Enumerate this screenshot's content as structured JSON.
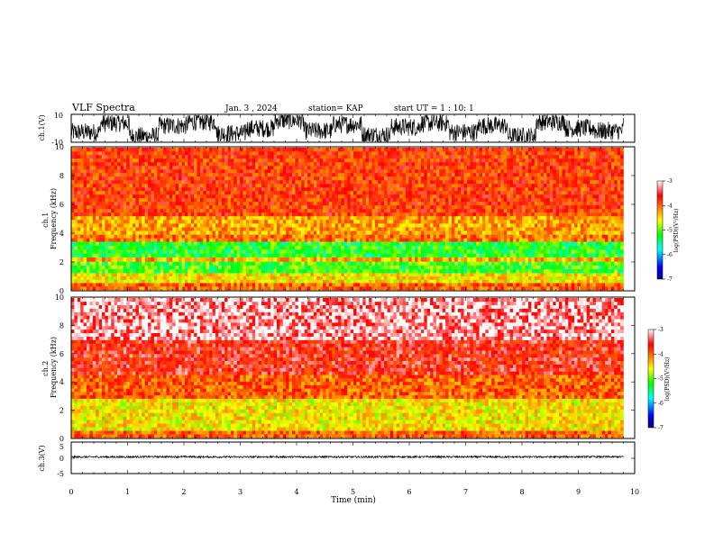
{
  "header": {
    "title": "VLF Spectra",
    "date": "Jan. 3 , 2024",
    "station": "station= KAP",
    "start": "start UT = 1 : 10: 1"
  },
  "colorbar": {
    "label": "log(PSD)(V²/Hz)",
    "ticks": [
      "-3",
      "-4",
      "-5",
      "-6",
      "-7"
    ],
    "colors": [
      "#000080",
      "#0000ff",
      "#00ffff",
      "#00ff00",
      "#ffff00",
      "#ff8000",
      "#ff0000",
      "#ffffff"
    ]
  },
  "chart_data": [
    {
      "type": "line",
      "title": "VLF Spectra",
      "ylabel": "ch.1(V)",
      "ylim": [
        -10,
        10
      ],
      "yticks": [
        "10",
        "-10"
      ],
      "xlim": [
        0,
        10
      ],
      "series": [
        {
          "values": [
            -3,
            4,
            -6,
            2,
            5,
            -4,
            0,
            6,
            -2,
            3,
            -5,
            1,
            4,
            -3,
            2,
            -6,
            5,
            0,
            -2,
            4
          ]
        }
      ]
    },
    {
      "type": "heatmap",
      "ylabel": "ch.1\nFrequency (kHz)",
      "ylim": [
        0,
        10
      ],
      "yticks": [
        "0",
        "2",
        "4",
        "6",
        "8",
        "10"
      ],
      "xlim": [
        0,
        10.0
      ],
      "data_end_min": 9.8,
      "bands": [
        {
          "from": 0.0,
          "to": 0.5,
          "level": -4.0
        },
        {
          "from": 0.5,
          "to": 1.2,
          "level": -4.6
        },
        {
          "from": 1.2,
          "to": 2.0,
          "level": -5.2
        },
        {
          "from": 2.0,
          "to": 2.3,
          "level": -4.3
        },
        {
          "from": 2.3,
          "to": 3.4,
          "level": -5.3
        },
        {
          "from": 3.4,
          "to": 3.9,
          "level": -4.1
        },
        {
          "from": 3.9,
          "to": 5.2,
          "level": -4.3
        },
        {
          "from": 5.2,
          "to": 10.0,
          "level": -3.8
        }
      ],
      "colorbar_label": "log(PSD)(V²/Hz)",
      "clim": [
        -7,
        -3
      ]
    },
    {
      "type": "heatmap",
      "ylabel": "ch.2\nFrequency (kHz)",
      "ylim": [
        0,
        10
      ],
      "yticks": [
        "0",
        "2",
        "4",
        "6",
        "8",
        "10"
      ],
      "xlim": [
        0,
        10.0
      ],
      "data_end_min": 9.8,
      "bands": [
        {
          "from": 0.0,
          "to": 0.5,
          "level": -4.0
        },
        {
          "from": 0.5,
          "to": 2.8,
          "level": -4.6
        },
        {
          "from": 2.8,
          "to": 4.5,
          "level": -4.0
        },
        {
          "from": 4.5,
          "to": 7.0,
          "level": -3.6
        },
        {
          "from": 7.0,
          "to": 10.0,
          "level": -3.2
        }
      ],
      "colorbar_label": "log(PSD)(V²/Hz)",
      "clim": [
        -7,
        -3
      ]
    },
    {
      "type": "line",
      "ylabel": "ch.3(V)",
      "ylim": [
        -5,
        5
      ],
      "yticks": [
        "5",
        "0",
        "-5"
      ],
      "xlim": [
        0,
        10
      ],
      "xlabel": "Time (min)",
      "xticks": [
        "0",
        "1",
        "2",
        "3",
        "4",
        "5",
        "6",
        "7",
        "8",
        "9",
        "10"
      ],
      "series": [
        {
          "values": [
            0.3,
            0.35,
            0.3,
            0.32,
            0.3,
            0.33,
            0.31,
            0.3,
            0.34,
            0.3
          ]
        }
      ]
    }
  ]
}
